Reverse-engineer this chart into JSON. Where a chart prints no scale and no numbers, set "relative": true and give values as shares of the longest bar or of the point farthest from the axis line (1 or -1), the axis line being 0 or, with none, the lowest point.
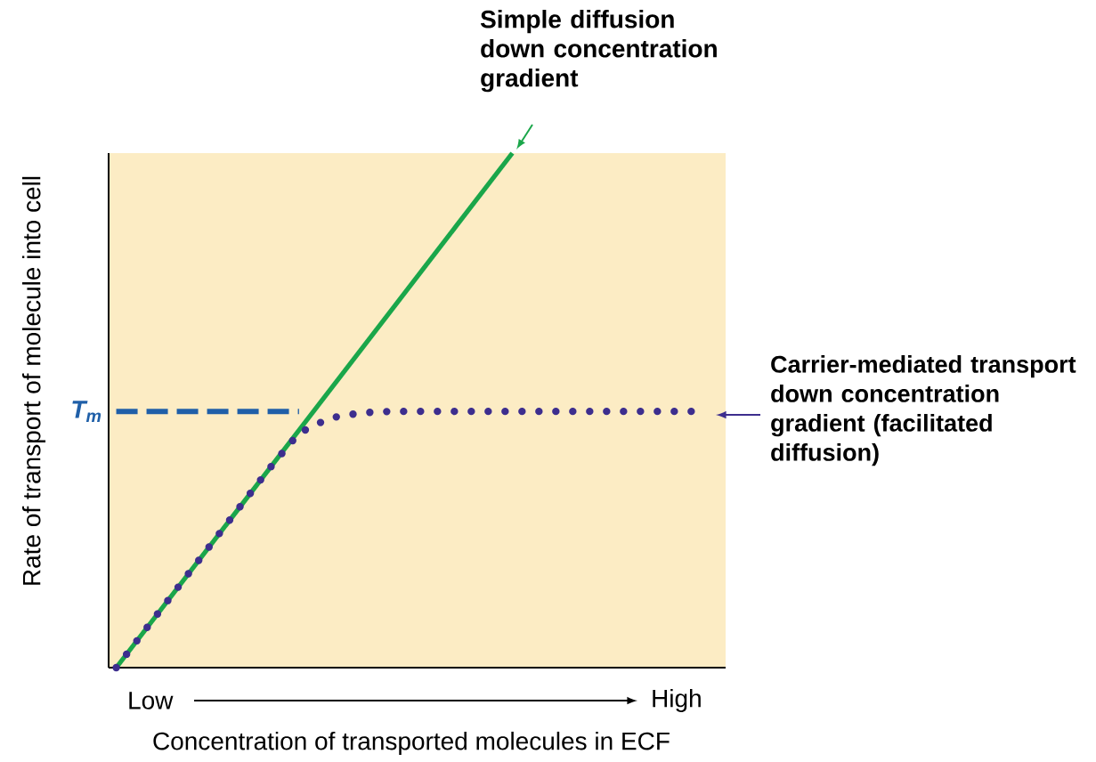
{
  "chart_data": {
    "type": "line",
    "relative": true,
    "xlabel": "Concentration of transported molecules in ECF",
    "ylabel": "Rate of transport of molecule into cell",
    "annotations": [
      "Low",
      "High"
    ],
    "categories": [
      null,
      null,
      null,
      null,
      null,
      null,
      null,
      null,
      null,
      null,
      null,
      null,
      null,
      null,
      null,
      null,
      null,
      null,
      null,
      null,
      null
    ],
    "series": [
      {
        "name": "Simple diffusion down concentration gradient",
        "color": "#1aa64a",
        "line_style": "solid",
        "values": [
          0,
          null,
          null,
          null,
          null,
          null,
          null,
          null,
          null,
          null,
          null,
          null,
          null,
          1,
          null,
          null,
          null,
          null,
          null,
          null,
          null
        ]
      },
      {
        "name": "Carrier-mediated transport down concentration gradient (facilitated diffusion)",
        "color": "#3d2e8e",
        "line_style": "dotted",
        "values": [
          0,
          0.077,
          0.154,
          0.231,
          0.308,
          0.385,
          0.456,
          0.485,
          0.495,
          0.498,
          0.498,
          0.498,
          0.498,
          0.498,
          0.498,
          0.498,
          0.498,
          0.498,
          0.498,
          0.498,
          null
        ]
      },
      {
        "name": "T$_{m}$",
        "color": "#1f5fa8",
        "line_style": "dashed",
        "values": [
          0.498,
          null,
          null,
          null,
          null,
          null,
          0.498,
          null,
          null,
          null,
          null,
          null,
          null,
          null,
          null,
          null,
          null,
          null,
          null,
          null,
          null
        ]
      }
    ]
  }
}
